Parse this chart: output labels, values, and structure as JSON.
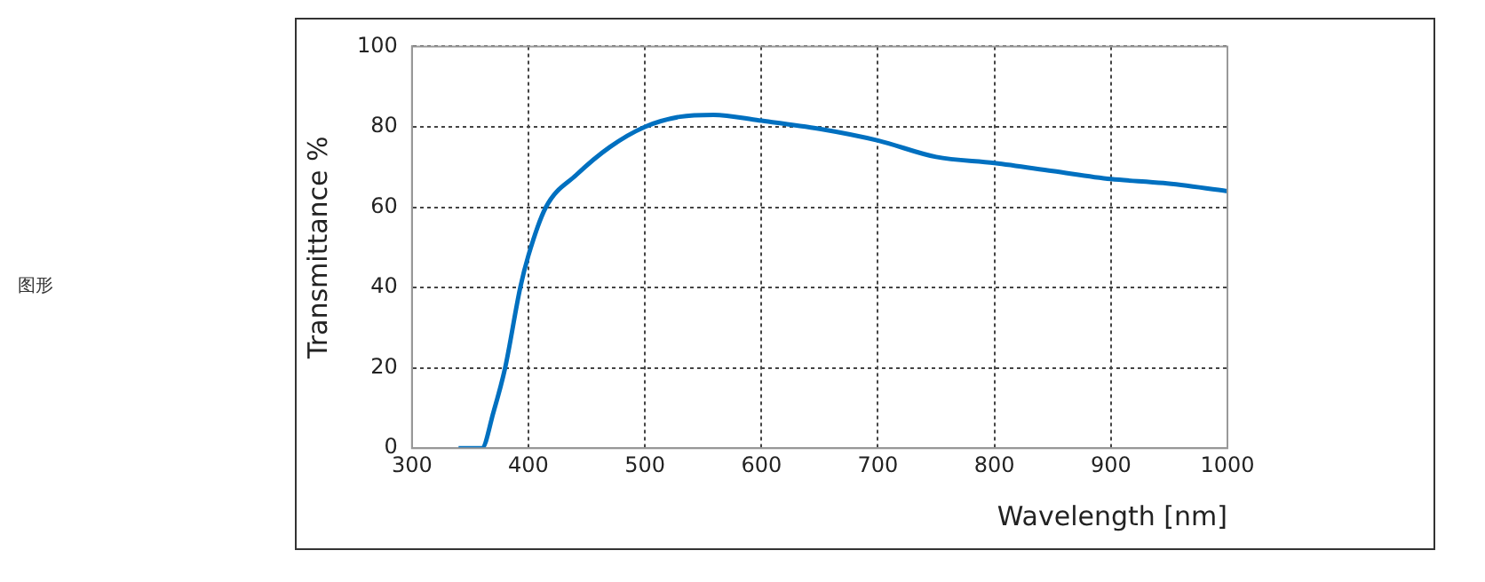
{
  "chart_data": {
    "type": "line",
    "xlabel": "Wavelength [nm]",
    "ylabel": "Transmittance %",
    "annotations": [
      "图形"
    ],
    "x": [
      340,
      350,
      360,
      370,
      380,
      393,
      400,
      415,
      441,
      470,
      500,
      530,
      559,
      598,
      650,
      700,
      750,
      800,
      850,
      900,
      945,
      1000
    ],
    "series": [
      {
        "color": "#0070c0",
        "values": [
          0,
          0,
          0,
          9,
          20,
          40,
          48,
          60,
          68,
          75,
          80,
          82.5,
          83,
          81.6,
          79.5,
          76.6,
          72.5,
          71,
          69,
          67,
          66,
          64
        ]
      }
    ],
    "xlim": [
      300,
      1000
    ],
    "xticks": [
      300,
      400,
      500,
      600,
      700,
      800,
      900,
      1000
    ],
    "ylim": [
      0,
      100
    ],
    "yticks": [
      0,
      20,
      40,
      60,
      80,
      100
    ],
    "grid": true,
    "legend": false,
    "marker": "none",
    "line_style": "solid"
  }
}
